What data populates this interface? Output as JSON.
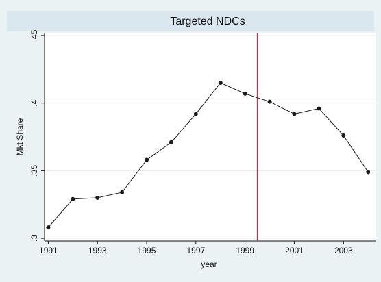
{
  "chart_data": {
    "type": "line",
    "title": "Targeted NDCs",
    "x_label": "year",
    "y_label": "Mkt Share",
    "x": [
      1991,
      1992,
      1993,
      1994,
      1995,
      1996,
      1997,
      1998,
      1999,
      2000,
      2001,
      2002,
      2003,
      2004
    ],
    "series": [
      {
        "name": "Mkt Share",
        "color": "#1a1a1a",
        "values": [
          0.308,
          0.329,
          0.33,
          0.334,
          0.358,
          0.371,
          0.392,
          0.415,
          0.407,
          0.401,
          0.392,
          0.396,
          0.376,
          0.349
        ]
      }
    ],
    "xlim": [
      1990.85,
      2004.3
    ],
    "ylim": [
      0.298,
      0.452
    ],
    "xticks": [
      1991,
      1993,
      1995,
      1997,
      1999,
      2001,
      2003
    ],
    "yticks": [
      {
        "value": 0.3,
        "label": ".3"
      },
      {
        "value": 0.35,
        "label": ".35"
      },
      {
        "value": 0.4,
        "label": ".4"
      },
      {
        "value": 0.45,
        "label": ".45"
      }
    ],
    "vline": {
      "value": 1999.5,
      "color": "#c0304a"
    },
    "grid": true
  }
}
